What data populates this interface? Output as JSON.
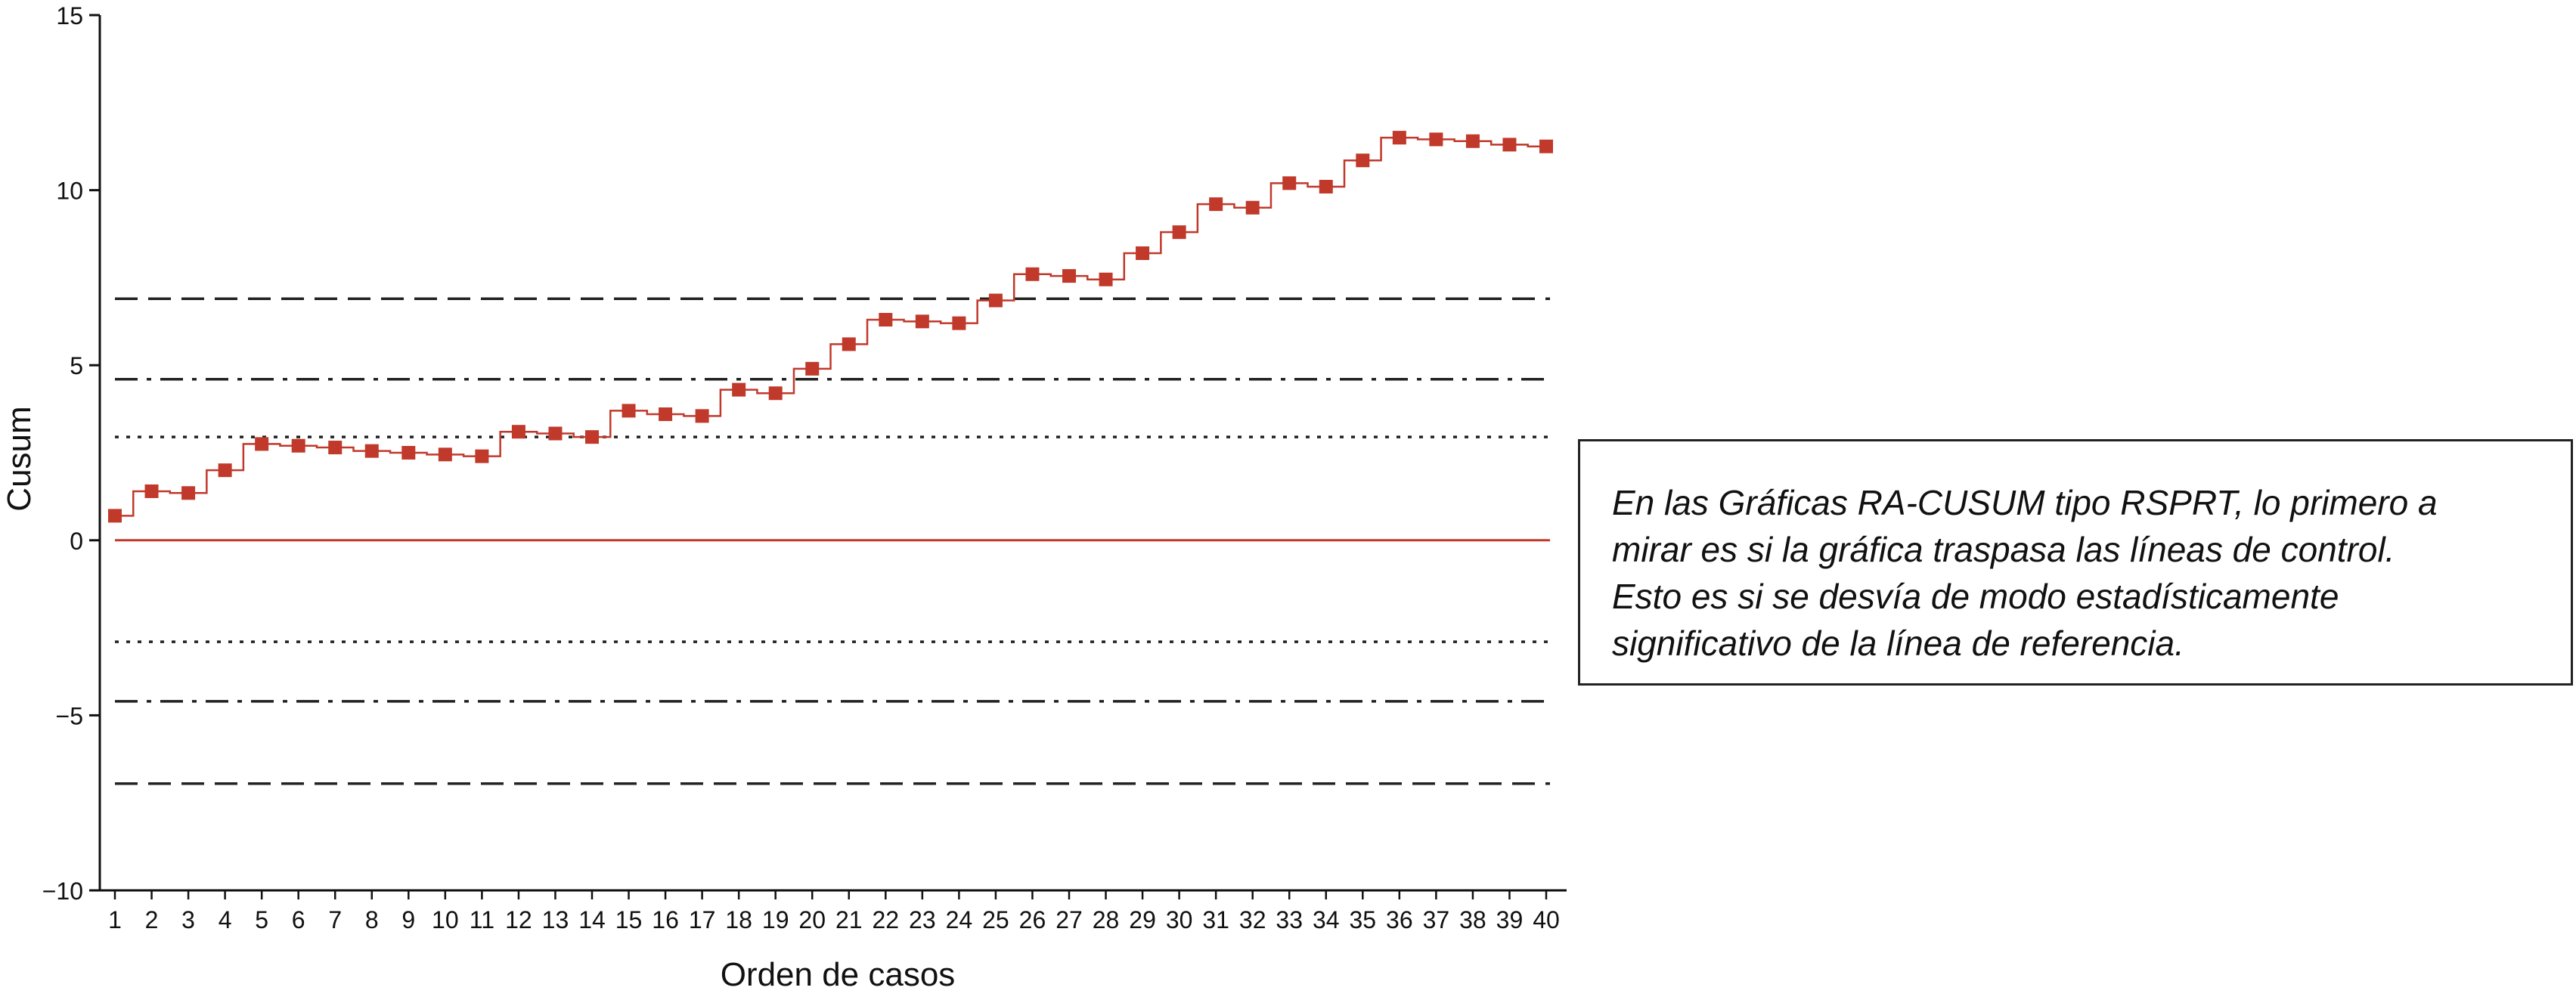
{
  "chart_data": {
    "type": "line",
    "xlabel": "Orden de casos",
    "ylabel": "Cusum",
    "xlim": [
      1,
      40
    ],
    "ylim": [
      -10,
      15
    ],
    "y_ticks": [
      -10,
      -5,
      0,
      5,
      10,
      15
    ],
    "y_tick_labels": [
      "−10",
      "−5",
      "0",
      "5",
      "10",
      "15"
    ],
    "x_ticks": [
      1,
      2,
      3,
      4,
      5,
      6,
      7,
      8,
      9,
      10,
      11,
      12,
      13,
      14,
      15,
      16,
      17,
      18,
      19,
      20,
      21,
      22,
      23,
      24,
      25,
      26,
      27,
      28,
      29,
      30,
      31,
      32,
      33,
      34,
      35,
      36,
      37,
      38,
      39,
      40
    ],
    "x_tick_labels": [
      "1",
      "2",
      "3",
      "4",
      "5",
      "6",
      "7",
      "8",
      "9",
      "10",
      "11",
      "12",
      "13",
      "14",
      "15",
      "16",
      "17",
      "18",
      "19",
      "20",
      "21",
      "22",
      "23",
      "24",
      "25",
      "26",
      "27",
      "28",
      "29",
      "30",
      "31",
      "32",
      "33",
      "34",
      "35",
      "36",
      "37",
      "38",
      "39",
      "40"
    ],
    "grid": false,
    "series": [
      {
        "color": "#c0392b",
        "marker": "square",
        "step": true,
        "x": [
          1,
          2,
          3,
          4,
          5,
          6,
          7,
          8,
          9,
          10,
          11,
          12,
          13,
          14,
          15,
          16,
          17,
          18,
          19,
          20,
          21,
          22,
          23,
          24,
          25,
          26,
          27,
          28,
          29,
          30,
          31,
          32,
          33,
          34,
          35,
          36,
          37,
          38,
          39,
          40
        ],
        "values": [
          0.7,
          1.4,
          1.35,
          2.0,
          2.75,
          2.7,
          2.65,
          2.55,
          2.5,
          2.45,
          2.4,
          3.1,
          3.05,
          2.95,
          3.7,
          3.6,
          3.55,
          4.3,
          4.2,
          4.9,
          5.6,
          6.3,
          6.25,
          6.2,
          6.85,
          7.6,
          7.55,
          7.45,
          8.2,
          8.8,
          9.6,
          9.5,
          10.2,
          10.1,
          10.85,
          11.5,
          11.45,
          11.4,
          11.3,
          11.25
        ]
      }
    ],
    "reference_lines": [
      {
        "y": 0,
        "style": "solid",
        "color": "#c0392b"
      },
      {
        "y": 6.9,
        "style": "dashed",
        "color": "#222222"
      },
      {
        "y": 4.6,
        "style": "dashdot",
        "color": "#222222"
      },
      {
        "y": 2.95,
        "style": "dotted",
        "color": "#222222"
      },
      {
        "y": -2.9,
        "style": "dotted",
        "color": "#222222"
      },
      {
        "y": -4.6,
        "style": "dashdot",
        "color": "#222222"
      },
      {
        "y": -6.95,
        "style": "dashed",
        "color": "#222222"
      }
    ]
  },
  "annotation": {
    "lines": [
      "En las Gráficas RA-CUSUM tipo RSPRT, lo primero a",
      "mirar es si la gráfica traspasa las líneas de control.",
      "Esto es si se desvía de modo estadísticamente",
      "significativo de la línea de referencia."
    ]
  }
}
